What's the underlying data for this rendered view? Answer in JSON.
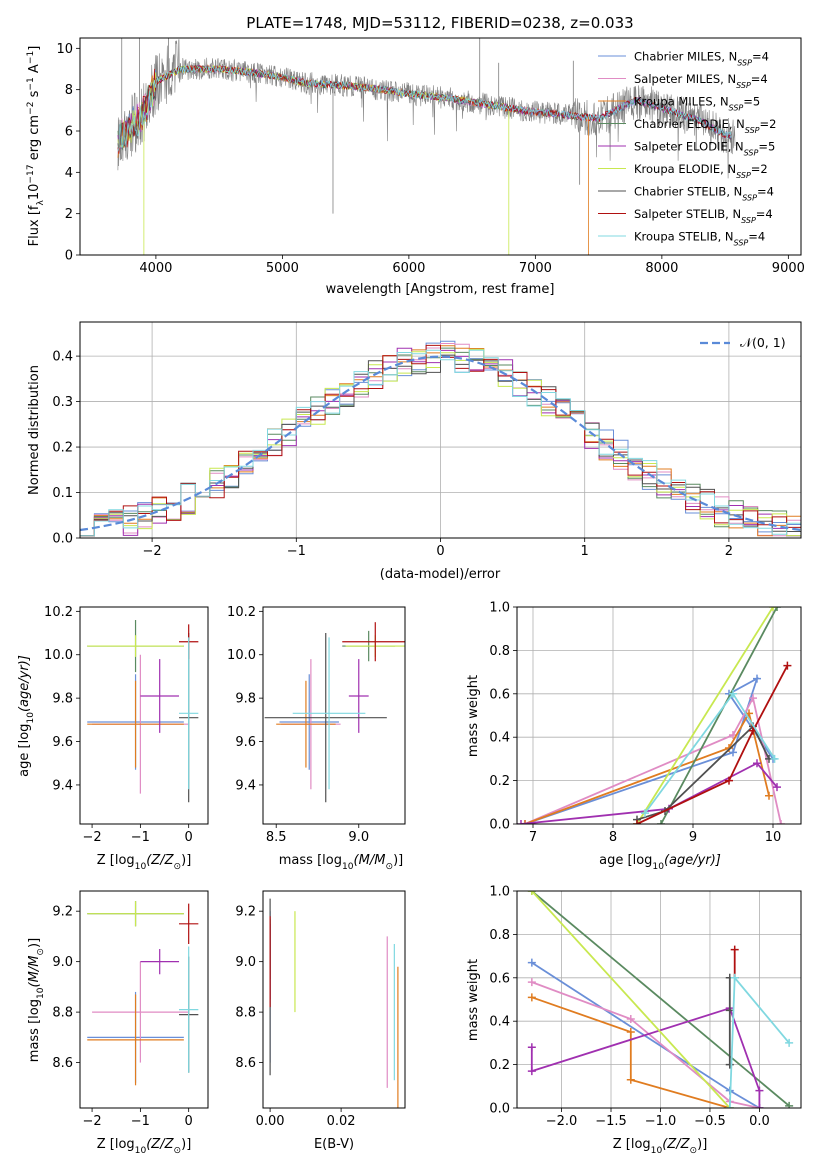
{
  "title": "PLATE=1748, MJD=53112, FIBERID=0238, z=0.033",
  "models": [
    {
      "name": "Chabrier MILES, N",
      "sub": "SSP",
      "tail": "=4",
      "color": "#6a8fd8"
    },
    {
      "name": "Salpeter MILES, N",
      "sub": "SSP",
      "tail": "=4",
      "color": "#e08cc4"
    },
    {
      "name": "Kroupa MILES, N",
      "sub": "SSP",
      "tail": "=5",
      "color": "#e07c20"
    },
    {
      "name": "Chabrier ELODIE, N",
      "sub": "SSP",
      "tail": "=2",
      "color": "#5a8a60"
    },
    {
      "name": "Salpeter ELODIE, N",
      "sub": "SSP",
      "tail": "=5",
      "color": "#a030b0"
    },
    {
      "name": "Kroupa ELODIE, N",
      "sub": "SSP",
      "tail": "=2",
      "color": "#c8e850"
    },
    {
      "name": "Chabrier STELIB, N",
      "sub": "SSP",
      "tail": "=4",
      "color": "#505050"
    },
    {
      "name": "Salpeter STELIB, N",
      "sub": "SSP",
      "tail": "=4",
      "color": "#b01010"
    },
    {
      "name": "Kroupa STELIB, N",
      "sub": "SSP",
      "tail": "=4",
      "color": "#80d8e0"
    }
  ],
  "data_color": "#808080",
  "chart_data": [
    {
      "id": "spectrum",
      "type": "line",
      "xlabel": "wavelength [Angstrom, rest frame]",
      "ylabel_parts": [
        "Flux [f",
        "λ",
        "10",
        "−17",
        " erg cm",
        "−2",
        " s",
        "−1",
        " A",
        "−1",
        "]"
      ],
      "xlim": [
        3400,
        9100
      ],
      "ylim": [
        0,
        10.5
      ],
      "xticks": [
        "4000",
        "5000",
        "6000",
        "7000",
        "8000",
        "9000"
      ],
      "yticks": [
        "0",
        "2",
        "4",
        "6",
        "8",
        "10"
      ],
      "legend": "top-right",
      "continuum_wavelength": [
        3700,
        3800,
        3900,
        4000,
        4200,
        4500,
        4800,
        5000,
        5200,
        5500,
        5800,
        6000,
        6300,
        6600,
        6900,
        7200,
        7500,
        7800,
        8000,
        8300,
        8500,
        8700,
        8900,
        9050
      ],
      "continuum_flux": [
        5.6,
        6.2,
        6.8,
        8.4,
        9.0,
        9.0,
        8.8,
        8.6,
        8.3,
        8.2,
        8.0,
        7.8,
        7.6,
        7.3,
        7.0,
        6.8,
        6.6,
        7.5,
        7.1,
        6.5,
        5.8,
        5.7,
        5.9,
        6.3
      ]
    },
    {
      "id": "residuals",
      "type": "histogram",
      "xlabel": "(data-model)/error",
      "ylabel": "Normed distribution",
      "xlim": [
        -2.5,
        2.5
      ],
      "ylim": [
        0,
        0.475
      ],
      "xticks": [
        "−2",
        "−1",
        "0",
        "1",
        "2"
      ],
      "yticks": [
        "0.0",
        "0.1",
        "0.2",
        "0.3",
        "0.4"
      ],
      "grid": true,
      "legend_label": "𝒩(0, 1)",
      "legend_color": "#5a8ad8",
      "bin_width": 0.1
    },
    {
      "id": "age-vs-z",
      "type": "errorbar",
      "xlabel_parts": [
        "Z [log",
        "10",
        "(Z/Z",
        "⊙",
        ")]"
      ],
      "ylabel_parts": [
        "age  [log",
        "10",
        "(age/yr)]"
      ],
      "xlim": [
        -2.25,
        0.4
      ],
      "ylim": [
        9.22,
        10.22
      ],
      "xticks": [
        "−2",
        "−1",
        "0"
      ],
      "xtick_values": [
        -2,
        -1,
        0
      ],
      "yticks": [
        "9.4",
        "9.6",
        "9.8",
        "10.0",
        "10.2"
      ],
      "ytick_values": [
        9.4,
        9.6,
        9.8,
        10.0,
        10.2
      ],
      "points": [
        {
          "x": -1.1,
          "y": 9.69,
          "xerr": 1.0,
          "yerr": 0.22
        },
        {
          "x": -1.0,
          "y": 9.68,
          "xerr": 1.0,
          "yerr": 0.32
        },
        {
          "x": -1.1,
          "y": 9.68,
          "xerr": 1.0,
          "yerr": 0.2
        },
        {
          "x": -1.1,
          "y": 10.04,
          "xerr": 1.0,
          "yerr": 0.12
        },
        {
          "x": -0.6,
          "y": 9.81,
          "xerr": 0.4,
          "yerr": 0.17
        },
        {
          "x": -1.1,
          "y": 10.04,
          "xerr": 1.0,
          "yerr": 0.05
        },
        {
          "x": 0.0,
          "y": 9.71,
          "xerr": 0.2,
          "yerr": 0.39
        },
        {
          "x": 0.0,
          "y": 10.06,
          "xerr": 0.2,
          "yerr": 0.08
        },
        {
          "x": 0.0,
          "y": 9.73,
          "xerr": 0.2,
          "yerr": 0.35
        }
      ]
    },
    {
      "id": "age-vs-mass",
      "type": "errorbar",
      "xlabel_parts": [
        "mass [log",
        "10",
        "(M/M",
        "⊙",
        ")]"
      ],
      "ylabel_parts": [],
      "xlim": [
        8.42,
        9.28
      ],
      "ylim": [
        9.22,
        10.22
      ],
      "xticks": [
        "8.5",
        "9.0"
      ],
      "xtick_values": [
        8.5,
        9.0
      ],
      "yticks": [
        "9.4",
        "9.6",
        "9.8",
        "10.0",
        "10.2"
      ],
      "ytick_values": [
        9.4,
        9.6,
        9.8,
        10.0,
        10.2
      ],
      "points": [
        {
          "x": 8.7,
          "y": 9.69,
          "xerr": 0.18,
          "yerr": 0.22
        },
        {
          "x": 8.71,
          "y": 9.68,
          "xerr": 0.18,
          "yerr": 0.3
        },
        {
          "x": 8.68,
          "y": 9.68,
          "xerr": 0.18,
          "yerr": 0.2
        },
        {
          "x": 9.06,
          "y": 10.04,
          "xerr": 0.16,
          "yerr": 0.07
        },
        {
          "x": 9.0,
          "y": 9.81,
          "xerr": 0.06,
          "yerr": 0.17
        },
        {
          "x": 9.1,
          "y": 10.04,
          "xerr": 0.18,
          "yerr": 0.05
        },
        {
          "x": 8.8,
          "y": 9.71,
          "xerr": 0.37,
          "yerr": 0.39
        },
        {
          "x": 9.1,
          "y": 10.06,
          "xerr": 0.2,
          "yerr": 0.09
        },
        {
          "x": 8.82,
          "y": 9.73,
          "xerr": 0.22,
          "yerr": 0.35
        }
      ]
    },
    {
      "id": "weight-vs-age",
      "type": "line",
      "xlabel_parts": [
        "age  [log",
        "10",
        "(age/yr)]"
      ],
      "ylabel": "mass weight",
      "xlim": [
        6.8,
        10.35
      ],
      "ylim": [
        0,
        1
      ],
      "xticks": [
        "7",
        "8",
        "9",
        "10"
      ],
      "xtick_values": [
        7,
        8,
        9,
        10
      ],
      "yticks": [
        "0.0",
        "0.2",
        "0.4",
        "0.6",
        "0.8",
        "1.0"
      ],
      "ytick_values": [
        0,
        0.2,
        0.4,
        0.6,
        0.8,
        1.0
      ],
      "grid": true,
      "series": [
        {
          "x": [
            6.9,
            9.5,
            9.8,
            9.45,
            10.0
          ],
          "y": [
            0.0,
            0.33,
            0.67,
            0.6,
            0.3
          ]
        },
        {
          "x": [
            6.9,
            9.5,
            9.75,
            10.1
          ],
          "y": [
            0.0,
            0.41,
            0.58,
            0.0
          ]
        },
        {
          "x": [
            6.9,
            9.45,
            9.7,
            9.95
          ],
          "y": [
            0.0,
            0.35,
            0.51,
            0.13
          ]
        },
        {
          "x": [
            8.6,
            10.05
          ],
          "y": [
            0.0,
            1.0
          ]
        },
        {
          "x": [
            6.85,
            8.7,
            9.8,
            10.05
          ],
          "y": [
            0.0,
            0.07,
            0.28,
            0.17
          ]
        },
        {
          "x": [
            8.3,
            10.0
          ],
          "y": [
            0.0,
            1.0
          ]
        },
        {
          "x": [
            8.3,
            8.65,
            9.75,
            9.95
          ],
          "y": [
            0.02,
            0.06,
            0.45,
            0.3
          ]
        },
        {
          "x": [
            8.3,
            9.45,
            9.75,
            10.18
          ],
          "y": [
            0.0,
            0.2,
            0.43,
            0.73
          ]
        },
        {
          "x": [
            8.4,
            9.5,
            10.02
          ],
          "y": [
            0.05,
            0.6,
            0.3
          ]
        }
      ]
    },
    {
      "id": "mass-vs-z",
      "type": "errorbar",
      "xlabel_parts": [
        "Z [log",
        "10",
        "(Z/Z",
        "⊙",
        ")]"
      ],
      "ylabel_parts": [
        "mass [log",
        "10",
        "(M/M",
        "⊙",
        ")]"
      ],
      "xlim": [
        -2.25,
        0.4
      ],
      "ylim": [
        8.42,
        9.28
      ],
      "xticks": [
        "−2",
        "−1",
        "0"
      ],
      "xtick_values": [
        -2,
        -1,
        0
      ],
      "yticks": [
        "8.6",
        "8.8",
        "9.0",
        "9.2"
      ],
      "ytick_values": [
        8.6,
        8.8,
        9.0,
        9.2
      ],
      "points": [
        {
          "x": -1.1,
          "y": 8.7,
          "xerr": 1.0,
          "yerr": 0.18
        },
        {
          "x": -1.0,
          "y": 8.8,
          "xerr": 1.0,
          "yerr": 0.2
        },
        {
          "x": -1.1,
          "y": 8.69,
          "xerr": 1.0,
          "yerr": 0.18
        },
        {
          "x": -1.1,
          "y": 9.19,
          "xerr": 1.0,
          "yerr": 0.05
        },
        {
          "x": -0.6,
          "y": 9.0,
          "xerr": 0.4,
          "yerr": 0.05
        },
        {
          "x": -1.1,
          "y": 9.19,
          "xerr": 1.0,
          "yerr": 0.05
        },
        {
          "x": 0.0,
          "y": 8.79,
          "xerr": 0.2,
          "yerr": 0.23
        },
        {
          "x": 0.0,
          "y": 9.15,
          "xerr": 0.2,
          "yerr": 0.08
        },
        {
          "x": 0.0,
          "y": 8.81,
          "xerr": 0.2,
          "yerr": 0.25
        }
      ]
    },
    {
      "id": "mass-vs-ebv",
      "type": "errorbar",
      "xlabel": "E(B-V)",
      "xlim": [
        -0.002,
        0.038
      ],
      "ylim": [
        8.42,
        9.28
      ],
      "xticks": [
        "0.00",
        "0.02"
      ],
      "xtick_values": [
        0.0,
        0.02
      ],
      "yticks": [
        "8.6",
        "8.8",
        "9.0",
        "9.2"
      ],
      "ytick_values": [
        8.6,
        8.8,
        9.0,
        9.2
      ],
      "points": [
        {
          "x": 0.0,
          "y": 8.9,
          "xerr": 0,
          "yerr": 0.3
        },
        {
          "x": 0.033,
          "y": 8.8,
          "xerr": 0,
          "yerr": 0.3
        },
        {
          "x": 0.036,
          "y": 8.7,
          "xerr": 0,
          "yerr": 0.28
        },
        {
          "x": 0.0,
          "y": 9.05,
          "xerr": 0,
          "yerr": 0.12
        },
        {
          "x": 0.0,
          "y": 9.0,
          "xerr": 0,
          "yerr": 0.15
        },
        {
          "x": 0.007,
          "y": 9.0,
          "xerr": 0,
          "yerr": 0.2
        },
        {
          "x": 0.0,
          "y": 8.9,
          "xerr": 0,
          "yerr": 0.35
        },
        {
          "x": 0.0,
          "y": 9.0,
          "xerr": 0,
          "yerr": 0.18
        },
        {
          "x": 0.035,
          "y": 8.8,
          "xerr": 0,
          "yerr": 0.27
        }
      ]
    },
    {
      "id": "weight-vs-z",
      "type": "line",
      "xlabel_parts": [
        "Z [log",
        "10",
        "(Z/Z",
        "⊙",
        ")]"
      ],
      "ylabel": "mass weight",
      "xlim": [
        -2.45,
        0.42
      ],
      "ylim": [
        0,
        1
      ],
      "xticks": [
        "−2.0",
        "−1.5",
        "−1.0",
        "−0.5",
        "0.0"
      ],
      "xtick_values": [
        -2.0,
        -1.5,
        -1.0,
        -0.5,
        0.0
      ],
      "yticks": [
        "0.0",
        "0.2",
        "0.4",
        "0.6",
        "0.8",
        "1.0"
      ],
      "ytick_values": [
        0,
        0.2,
        0.4,
        0.6,
        0.8,
        1.0
      ],
      "grid": true,
      "series": [
        {
          "x": [
            -2.3,
            -0.3,
            0.0
          ],
          "y": [
            0.67,
            0.08,
            0.0
          ]
        },
        {
          "x": [
            -2.3,
            -1.3,
            -0.3,
            0.0
          ],
          "y": [
            0.58,
            0.41,
            0.03,
            0.0
          ]
        },
        {
          "x": [
            -2.3,
            -1.3,
            -1.3,
            -0.3
          ],
          "y": [
            0.51,
            0.35,
            0.13,
            0.0
          ]
        },
        {
          "x": [
            -2.3,
            0.3
          ],
          "y": [
            1.0,
            0.01
          ]
        },
        {
          "x": [
            -2.3,
            -2.3,
            -0.3,
            0.0,
            0.0
          ],
          "y": [
            0.28,
            0.17,
            0.46,
            0.08,
            0.0
          ]
        },
        {
          "x": [
            -2.3,
            -0.3
          ],
          "y": [
            1.0,
            0.0
          ]
        },
        {
          "x": [
            -0.3,
            -0.3,
            -0.3
          ],
          "y": [
            0.6,
            0.45,
            0.2
          ]
        },
        {
          "x": [
            -0.25,
            -0.25
          ],
          "y": [
            0.73,
            0.6
          ]
        },
        {
          "x": [
            -0.3,
            -0.25,
            0.3
          ],
          "y": [
            0.0,
            0.6,
            0.3
          ]
        }
      ]
    }
  ]
}
